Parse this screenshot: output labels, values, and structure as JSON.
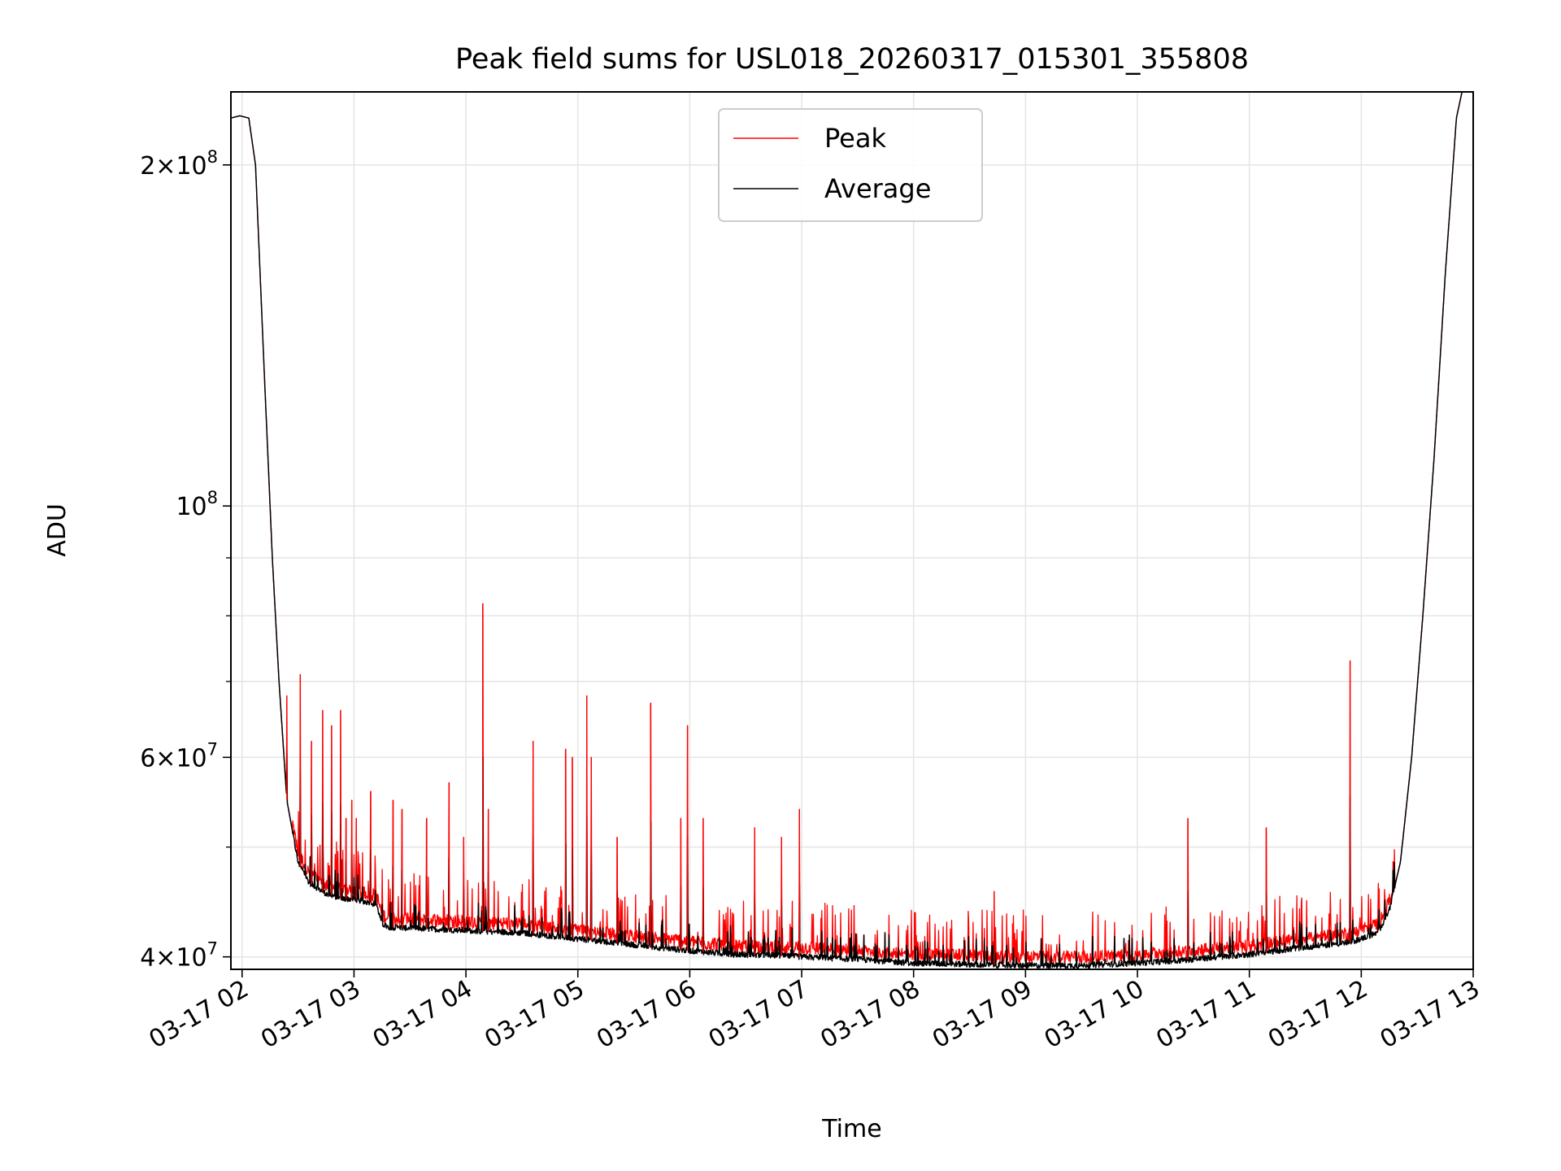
{
  "chart_data": {
    "type": "line",
    "title": "Peak field sums for USL018_20260317_015301_355808",
    "xlabel": "Time",
    "ylabel": "ADU",
    "yscale": "log",
    "ylim": [
      39000000,
      232000000
    ],
    "xlim_hours": [
      1.9,
      13.0
    ],
    "grid": true,
    "legend_position": "upper-center",
    "x_ticks": [
      {
        "h": 2,
        "label": "03-17 02"
      },
      {
        "h": 3,
        "label": "03-17 03"
      },
      {
        "h": 4,
        "label": "03-17 04"
      },
      {
        "h": 5,
        "label": "03-17 05"
      },
      {
        "h": 6,
        "label": "03-17 06"
      },
      {
        "h": 7,
        "label": "03-17 07"
      },
      {
        "h": 8,
        "label": "03-17 08"
      },
      {
        "h": 9,
        "label": "03-17 09"
      },
      {
        "h": 10,
        "label": "03-17 10"
      },
      {
        "h": 11,
        "label": "03-17 11"
      },
      {
        "h": 12,
        "label": "03-17 12"
      },
      {
        "h": 13,
        "label": "03-17 13"
      }
    ],
    "y_major_ticks": [
      {
        "v": 40000000,
        "mant": "4",
        "exp": "7"
      },
      {
        "v": 60000000,
        "mant": "6",
        "exp": "7"
      },
      {
        "v": 100000000,
        "mant": "",
        "exp": "8"
      },
      {
        "v": 200000000,
        "mant": "2",
        "exp": "8"
      }
    ],
    "y_minor_ticks": [
      50000000,
      70000000,
      80000000,
      90000000
    ],
    "series": [
      {
        "name": "Peak",
        "color": "#ff0000"
      },
      {
        "name": "Average",
        "color": "#000000"
      }
    ],
    "baseline": {
      "h": [
        1.9,
        1.98,
        2.06,
        2.12,
        2.2,
        2.27,
        2.33,
        2.4,
        2.5,
        2.6,
        2.75,
        2.9,
        3.0,
        3.2,
        3.25,
        3.3,
        4.0,
        4.5,
        5.0,
        5.5,
        6.0,
        6.4,
        6.8,
        7.5,
        8.0,
        9.0,
        9.5,
        10.0,
        10.5,
        11.0,
        11.5,
        11.9,
        12.15,
        12.25,
        12.35,
        12.45,
        12.55,
        12.65,
        12.75,
        12.85,
        12.9
      ],
      "values": [
        220000000,
        221000000,
        220000000,
        200000000,
        130000000,
        90000000,
        70000000,
        55000000,
        48500000,
        46500000,
        45500000,
        45000000,
        45000000,
        44500000,
        42800000,
        42500000,
        42200000,
        42000000,
        41500000,
        41000000,
        40500000,
        40200000,
        40100000,
        39800000,
        39500000,
        39300000,
        39300000,
        39500000,
        39800000,
        40200000,
        40800000,
        41200000,
        42000000,
        44000000,
        48500000,
        60000000,
        80000000,
        110000000,
        160000000,
        220000000,
        232000000
      ]
    },
    "spikes": {
      "h": [
        2.4,
        2.52,
        2.62,
        2.72,
        2.8,
        2.88,
        2.93,
        2.98,
        3.02,
        3.15,
        3.35,
        3.43,
        3.65,
        3.85,
        3.98,
        4.15,
        4.2,
        4.6,
        4.89,
        4.95,
        5.08,
        5.12,
        5.35,
        5.65,
        5.92,
        5.98,
        6.12,
        6.58,
        6.82,
        6.98,
        8.72,
        10.45,
        11.15,
        11.9
      ],
      "values": [
        68000000,
        71000000,
        62000000,
        66000000,
        64000000,
        66000000,
        53000000,
        55000000,
        53000000,
        56000000,
        55000000,
        54000000,
        53000000,
        57000000,
        51000000,
        82000000,
        54000000,
        62000000,
        61000000,
        60000000,
        68000000,
        60000000,
        51000000,
        67000000,
        53000000,
        64000000,
        53000000,
        52000000,
        51000000,
        54000000,
        45700000,
        53000000,
        52000000,
        73000000
      ]
    }
  }
}
